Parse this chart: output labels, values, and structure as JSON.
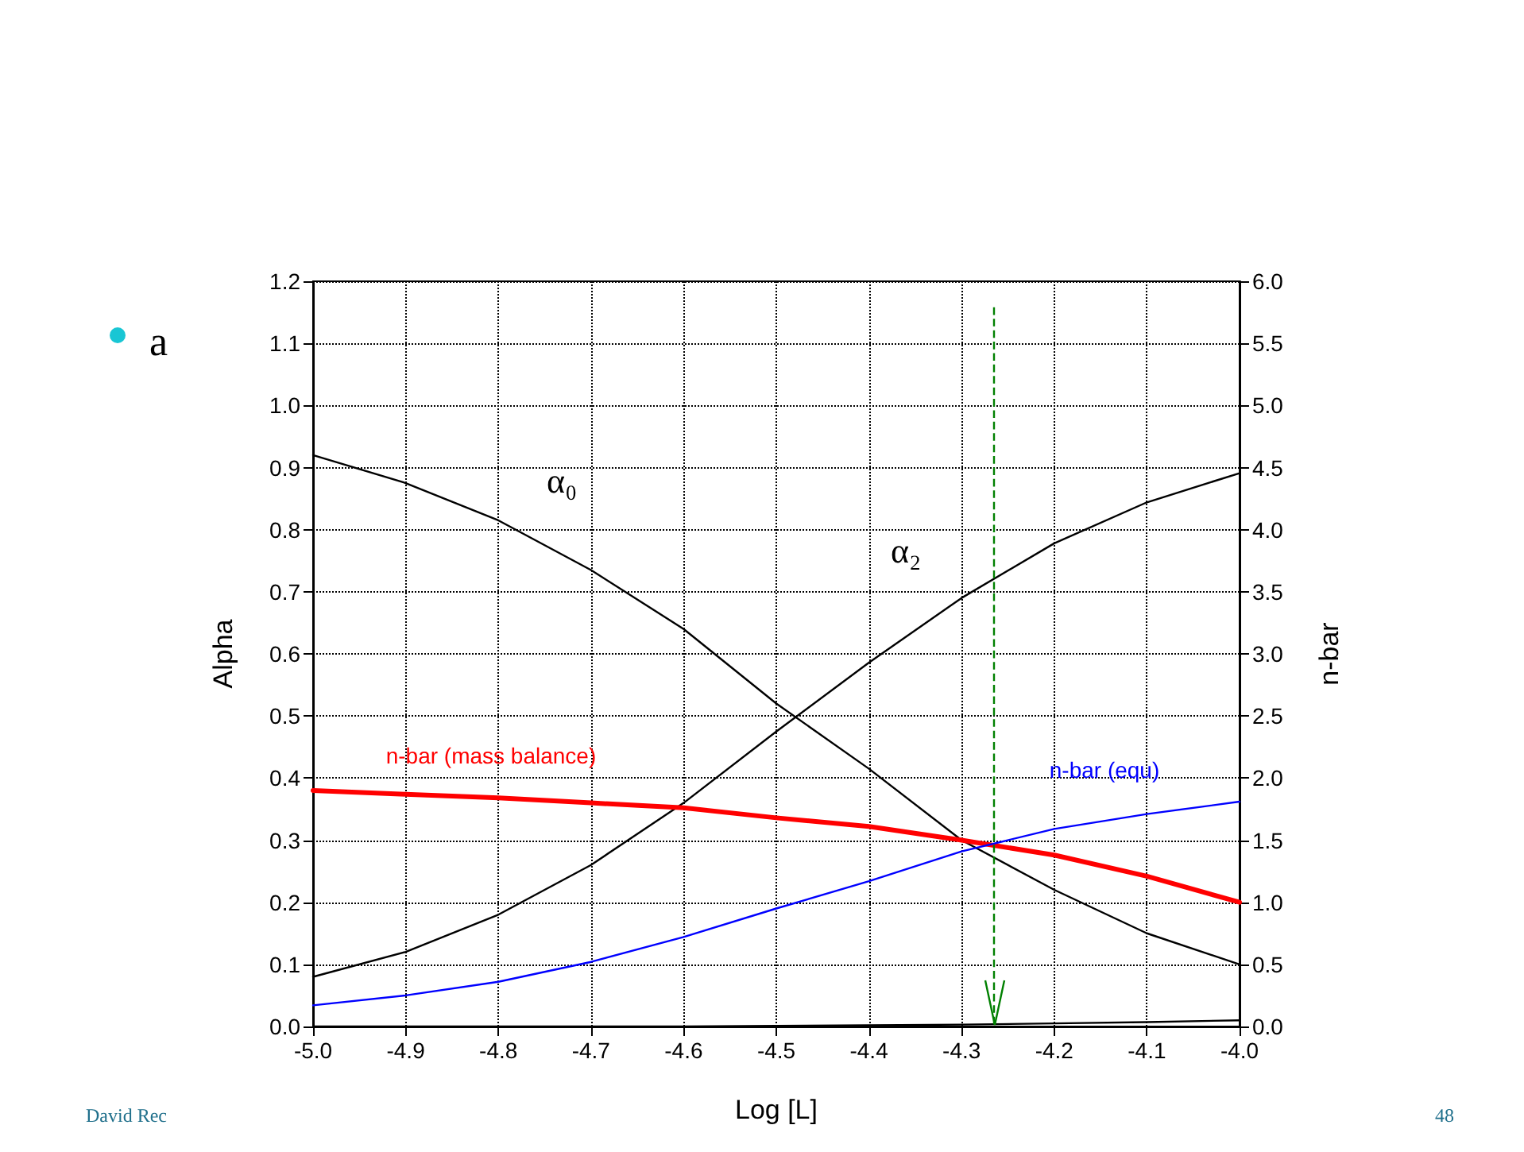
{
  "chart_data": {
    "type": "line",
    "xlabel": "Log [L]",
    "ylabel": "Alpha",
    "y2label": "n-bar",
    "x": [
      -5.0,
      -4.9,
      -4.8,
      -4.7,
      -4.6,
      -4.5,
      -4.4,
      -4.3,
      -4.2,
      -4.1,
      -4.0
    ],
    "series": [
      {
        "name": "α₀",
        "color": "#000000",
        "values": [
          0.92,
          0.875,
          0.815,
          0.735,
          0.64,
          0.52,
          0.415,
          0.3,
          0.22,
          0.15,
          0.1
        ]
      },
      {
        "name": "α₂",
        "color": "#000000",
        "values": [
          0.08,
          0.12,
          0.18,
          0.26,
          0.36,
          0.475,
          0.586,
          0.69,
          0.778,
          0.844,
          0.891
        ]
      },
      {
        "color": "#000000",
        "values": [
          0,
          0,
          0,
          0,
          0,
          0.001,
          0.002,
          0.003,
          0.005,
          0.007,
          0.01
        ]
      },
      {
        "name": "n-bar (mass balance)",
        "color": "#ff0000",
        "axis": "y2",
        "values": [
          1.9,
          1.87,
          1.84,
          1.8,
          1.76,
          1.68,
          1.61,
          1.5,
          1.38,
          1.21,
          1.0
        ]
      },
      {
        "name": "n-bar (equ)",
        "color": "#0000ff",
        "axis": "y2",
        "values": [
          0.17,
          0.25,
          0.36,
          0.52,
          0.72,
          0.95,
          1.17,
          1.41,
          1.59,
          1.71,
          1.81
        ]
      }
    ],
    "xlim": [
      -5.0,
      -4.0
    ],
    "xticks": [
      {
        "value": -5.0,
        "label": "-5.0"
      },
      -4.9,
      -4.8,
      -4.7,
      -4.6,
      -4.5,
      -4.4,
      -4.3,
      -4.2,
      -4.1,
      {
        "value": -4.0,
        "label": "-4.0"
      }
    ],
    "ylim": [
      0,
      1.2
    ],
    "yticks": [
      {
        "value": 0,
        "label": "0.0"
      },
      0.1,
      0.2,
      0.3,
      0.4,
      0.5,
      0.6,
      0.7,
      0.8,
      0.9,
      {
        "value": 1,
        "label": "1.0"
      },
      1.1,
      1.2
    ],
    "y2lim": [
      0,
      6
    ],
    "y2ticks": [
      {
        "value": 0,
        "label": "0.0"
      },
      0.5,
      {
        "value": 1,
        "label": "1.0"
      },
      1.5,
      {
        "value": 2,
        "label": "2.0"
      },
      2.5,
      {
        "value": 3,
        "label": "3.0"
      },
      3.5,
      {
        "value": 4,
        "label": "4.0"
      },
      4.5,
      {
        "value": 5,
        "label": "5.0"
      },
      5.5,
      {
        "value": 6,
        "label": "6.0"
      }
    ],
    "ref_lines": [
      {
        "axis": "x",
        "value": -4.265,
        "color": "#008000",
        "line_style": "dashed"
      }
    ],
    "grid": true,
    "legend": false,
    "marker": "none",
    "line_style": "solid",
    "annotations": [
      "a",
      "David Rec",
      "48"
    ]
  }
}
